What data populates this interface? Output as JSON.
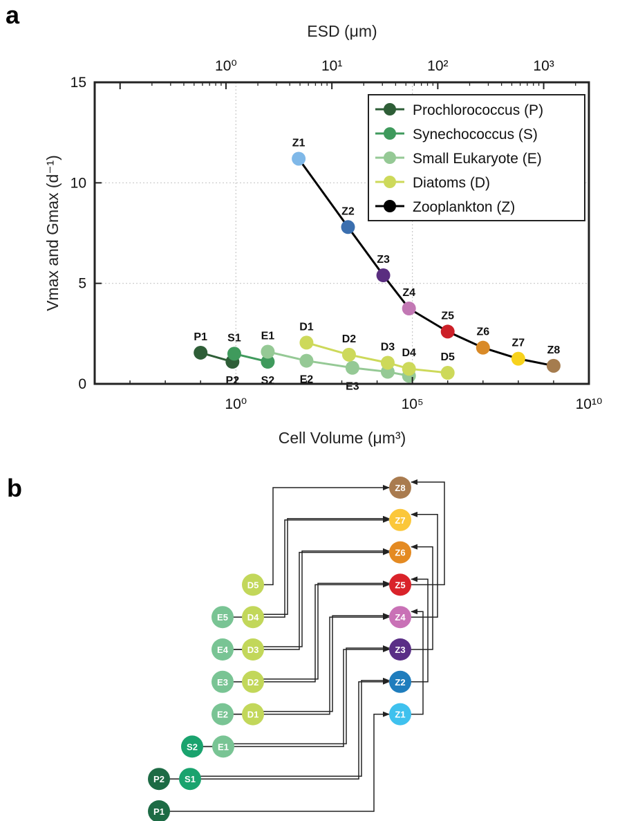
{
  "figure": {
    "panel_a_label": "a",
    "panel_b_label": "b"
  },
  "chart_data": {
    "type": "line",
    "title": "",
    "xlabel": "Cell Volume (μm³)",
    "ylabel": "Vmax and Gmax (d⁻¹)",
    "top_xlabel": "ESD (μm)",
    "x_scale": "log",
    "x_unit": "cell volume (μm³)",
    "xlim": [
      0.0001,
      10000000000.0
    ],
    "ylim": [
      0,
      15
    ],
    "grid": true,
    "legend_position": "top-right",
    "x_ticks": [
      {
        "value": 1,
        "label": "10⁰"
      },
      {
        "value": 100000,
        "label": "10⁵"
      },
      {
        "value": 10000000000,
        "label": "10¹⁰"
      }
    ],
    "y_ticks": [
      {
        "value": 0,
        "label": "0"
      },
      {
        "value": 5,
        "label": "5"
      },
      {
        "value": 10,
        "label": "10"
      },
      {
        "value": 15,
        "label": "15"
      }
    ],
    "top_ticks": [
      {
        "value": 1,
        "label": "10⁰"
      },
      {
        "value": 10,
        "label": "10¹"
      },
      {
        "value": 100,
        "label": "10²"
      },
      {
        "value": 1000,
        "label": "10³"
      }
    ],
    "top_axis_relation": "ESD = (6V/π)^(1/3)",
    "series": [
      {
        "name": "Prochlorococcus (P)",
        "color": "#2e5e37",
        "points": [
          {
            "label": "P1",
            "x": 0.1,
            "y": 1.55,
            "label_pos": "above"
          },
          {
            "label": "P2",
            "x": 0.8,
            "y": 1.1,
            "label_pos": "below"
          }
        ]
      },
      {
        "name": "Synechococcus (S)",
        "color": "#3f9a5c",
        "points": [
          {
            "label": "S1",
            "x": 0.9,
            "y": 1.5,
            "label_pos": "above"
          },
          {
            "label": "S2",
            "x": 8,
            "y": 1.1,
            "label_pos": "below"
          }
        ]
      },
      {
        "name": "Small Eukaryote (E)",
        "color": "#95c995",
        "points": [
          {
            "label": "E1",
            "x": 8,
            "y": 1.6,
            "label_pos": "above"
          },
          {
            "label": "E2",
            "x": 100,
            "y": 1.15,
            "label_pos": "below"
          },
          {
            "label": "E3",
            "x": 2000,
            "y": 0.8,
            "label_pos": "below"
          },
          {
            "label": "E4",
            "x": 20000,
            "y": 0.6,
            "label_pos": "none"
          },
          {
            "label": "E5",
            "x": 80000,
            "y": 0.4,
            "label_pos": "none"
          }
        ]
      },
      {
        "name": "Diatoms (D)",
        "color": "#cdd95a",
        "points": [
          {
            "label": "D1",
            "x": 100,
            "y": 2.05,
            "label_pos": "above"
          },
          {
            "label": "D2",
            "x": 1600,
            "y": 1.45,
            "label_pos": "above"
          },
          {
            "label": "D3",
            "x": 20000,
            "y": 1.05,
            "label_pos": "above"
          },
          {
            "label": "D4",
            "x": 80000,
            "y": 0.75,
            "label_pos": "above"
          },
          {
            "label": "D5",
            "x": 1000000,
            "y": 0.55,
            "label_pos": "above"
          }
        ]
      },
      {
        "name": "Zooplankton (Z)",
        "color": "#000000",
        "points": [
          {
            "label": "Z1",
            "x": 60,
            "y": 11.2,
            "color": "#7fb8e8",
            "label_pos": "above"
          },
          {
            "label": "Z2",
            "x": 1500,
            "y": 7.8,
            "color": "#3b6faf",
            "label_pos": "above"
          },
          {
            "label": "Z3",
            "x": 15000,
            "y": 5.4,
            "color": "#5a2e80",
            "label_pos": "above"
          },
          {
            "label": "Z4",
            "x": 80000,
            "y": 3.75,
            "color": "#c278b4",
            "label_pos": "above"
          },
          {
            "label": "Z5",
            "x": 1000000,
            "y": 2.6,
            "color": "#cc2028",
            "label_pos": "above"
          },
          {
            "label": "Z6",
            "x": 10000000,
            "y": 1.8,
            "color": "#d98a27",
            "label_pos": "above"
          },
          {
            "label": "Z7",
            "x": 100000000,
            "y": 1.25,
            "color": "#f7d21c",
            "label_pos": "above"
          },
          {
            "label": "Z8",
            "x": 1000000000,
            "y": 0.9,
            "color": "#a57c4e",
            "label_pos": "above"
          }
        ]
      }
    ]
  },
  "food_web": {
    "nodes": [
      {
        "id": "P1",
        "color": "#1d6b45"
      },
      {
        "id": "P2",
        "color": "#1d6b45"
      },
      {
        "id": "S1",
        "color": "#1aa36e"
      },
      {
        "id": "S2",
        "color": "#1aa36e"
      },
      {
        "id": "E1",
        "color": "#79c494"
      },
      {
        "id": "E2",
        "color": "#79c494"
      },
      {
        "id": "E3",
        "color": "#79c494"
      },
      {
        "id": "E4",
        "color": "#79c494"
      },
      {
        "id": "E5",
        "color": "#79c494"
      },
      {
        "id": "D1",
        "color": "#c2d75a"
      },
      {
        "id": "D2",
        "color": "#c2d75a"
      },
      {
        "id": "D3",
        "color": "#c2d75a"
      },
      {
        "id": "D4",
        "color": "#c2d75a"
      },
      {
        "id": "D5",
        "color": "#c2d75a"
      },
      {
        "id": "Z1",
        "color": "#3fc1ee"
      },
      {
        "id": "Z2",
        "color": "#1f7dbd"
      },
      {
        "id": "Z3",
        "color": "#5a2f86"
      },
      {
        "id": "Z4",
        "color": "#c971b6"
      },
      {
        "id": "Z5",
        "color": "#d9232a"
      },
      {
        "id": "Z6",
        "color": "#e48a22"
      },
      {
        "id": "Z7",
        "color": "#fbc73a"
      },
      {
        "id": "Z8",
        "color": "#a97b4f"
      }
    ],
    "grazing_links": [
      {
        "prey": [
          "P1"
        ],
        "predator": "Z1"
      },
      {
        "prey": [
          "P2",
          "S1"
        ],
        "predator": "Z2"
      },
      {
        "prey": [
          "S2",
          "E1"
        ],
        "predator": "Z3"
      },
      {
        "prey": [
          "E2",
          "D1"
        ],
        "predator": "Z4"
      },
      {
        "prey": [
          "E3",
          "D2"
        ],
        "predator": "Z5"
      },
      {
        "prey": [
          "E4",
          "D3"
        ],
        "predator": "Z6"
      },
      {
        "prey": [
          "E5",
          "D4"
        ],
        "predator": "Z7"
      },
      {
        "prey": [
          "D5"
        ],
        "predator": "Z8"
      },
      {
        "prey": [
          "Z1"
        ],
        "predator": "Z4"
      },
      {
        "prey": [
          "Z2"
        ],
        "predator": "Z5"
      },
      {
        "prey": [
          "Z3"
        ],
        "predator": "Z6"
      },
      {
        "prey": [
          "Z4"
        ],
        "predator": "Z7"
      },
      {
        "prey": [
          "Z5"
        ],
        "predator": "Z8"
      }
    ]
  }
}
